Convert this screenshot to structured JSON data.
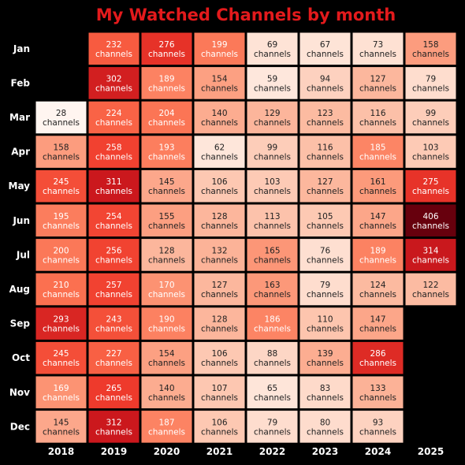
{
  "chart_data": {
    "type": "heatmap",
    "title": "My Watched Channels by month",
    "title_color": "#e31a1c",
    "x_labels": [
      "2018",
      "2019",
      "2020",
      "2021",
      "2022",
      "2023",
      "2024",
      "2025"
    ],
    "y_labels": [
      "Jan",
      "Feb",
      "Mar",
      "Apr",
      "May",
      "Jun",
      "Jul",
      "Aug",
      "Sep",
      "Oct",
      "Nov",
      "Dec"
    ],
    "cell_unit": "channels",
    "colormap": "Reds",
    "vmin": 28,
    "vmax": 406,
    "values": [
      [
        null,
        232,
        276,
        199,
        69,
        67,
        73,
        158
      ],
      [
        null,
        302,
        189,
        154,
        59,
        94,
        127,
        79
      ],
      [
        28,
        224,
        204,
        140,
        129,
        123,
        116,
        99
      ],
      [
        158,
        258,
        193,
        62,
        99,
        116,
        185,
        103
      ],
      [
        245,
        311,
        145,
        106,
        103,
        127,
        161,
        275
      ],
      [
        195,
        254,
        155,
        128,
        113,
        105,
        147,
        406
      ],
      [
        200,
        256,
        128,
        132,
        165,
        76,
        189,
        314
      ],
      [
        210,
        257,
        170,
        127,
        163,
        79,
        124,
        122
      ],
      [
        293,
        243,
        190,
        128,
        186,
        110,
        147,
        null
      ],
      [
        245,
        227,
        154,
        106,
        88,
        139,
        286,
        null
      ],
      [
        169,
        265,
        140,
        107,
        65,
        83,
        133,
        null
      ],
      [
        145,
        312,
        187,
        106,
        79,
        80,
        93,
        null
      ]
    ]
  }
}
